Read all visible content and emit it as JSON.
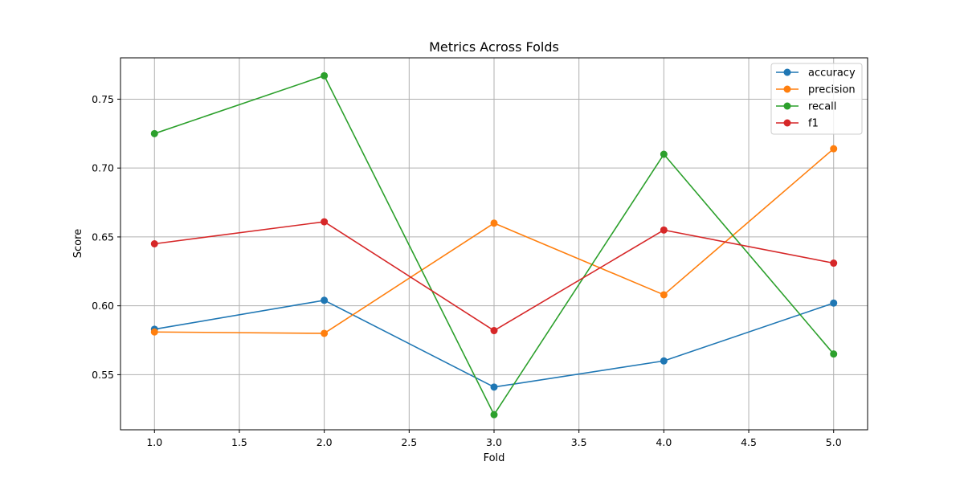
{
  "chart_data": {
    "type": "line",
    "title": "Metrics Across Folds",
    "xlabel": "Fold",
    "ylabel": "Score",
    "x": [
      1,
      2,
      3,
      4,
      5
    ],
    "xlim": [
      0.8,
      5.2
    ],
    "ylim": [
      0.51,
      0.78
    ],
    "xticks": [
      1.0,
      1.5,
      2.0,
      2.5,
      3.0,
      3.5,
      4.0,
      4.5,
      5.0
    ],
    "xtick_labels": [
      "1.0",
      "1.5",
      "2.0",
      "2.5",
      "3.0",
      "3.5",
      "4.0",
      "4.5",
      "5.0"
    ],
    "yticks": [
      0.55,
      0.6,
      0.65,
      0.7,
      0.75
    ],
    "ytick_labels": [
      "0.55",
      "0.60",
      "0.65",
      "0.70",
      "0.75"
    ],
    "grid": true,
    "legend_position": "top-right",
    "series": [
      {
        "name": "accuracy",
        "color": "#1f77b4",
        "marker": "circle",
        "values": [
          0.583,
          0.604,
          0.541,
          0.56,
          0.602
        ]
      },
      {
        "name": "precision",
        "color": "#ff7f0e",
        "marker": "circle",
        "values": [
          0.581,
          0.58,
          0.66,
          0.608,
          0.714
        ]
      },
      {
        "name": "recall",
        "color": "#2ca02c",
        "marker": "circle",
        "values": [
          0.725,
          0.767,
          0.521,
          0.71,
          0.565
        ]
      },
      {
        "name": "f1",
        "color": "#d62728",
        "marker": "circle",
        "values": [
          0.645,
          0.661,
          0.582,
          0.655,
          0.631
        ]
      }
    ]
  }
}
